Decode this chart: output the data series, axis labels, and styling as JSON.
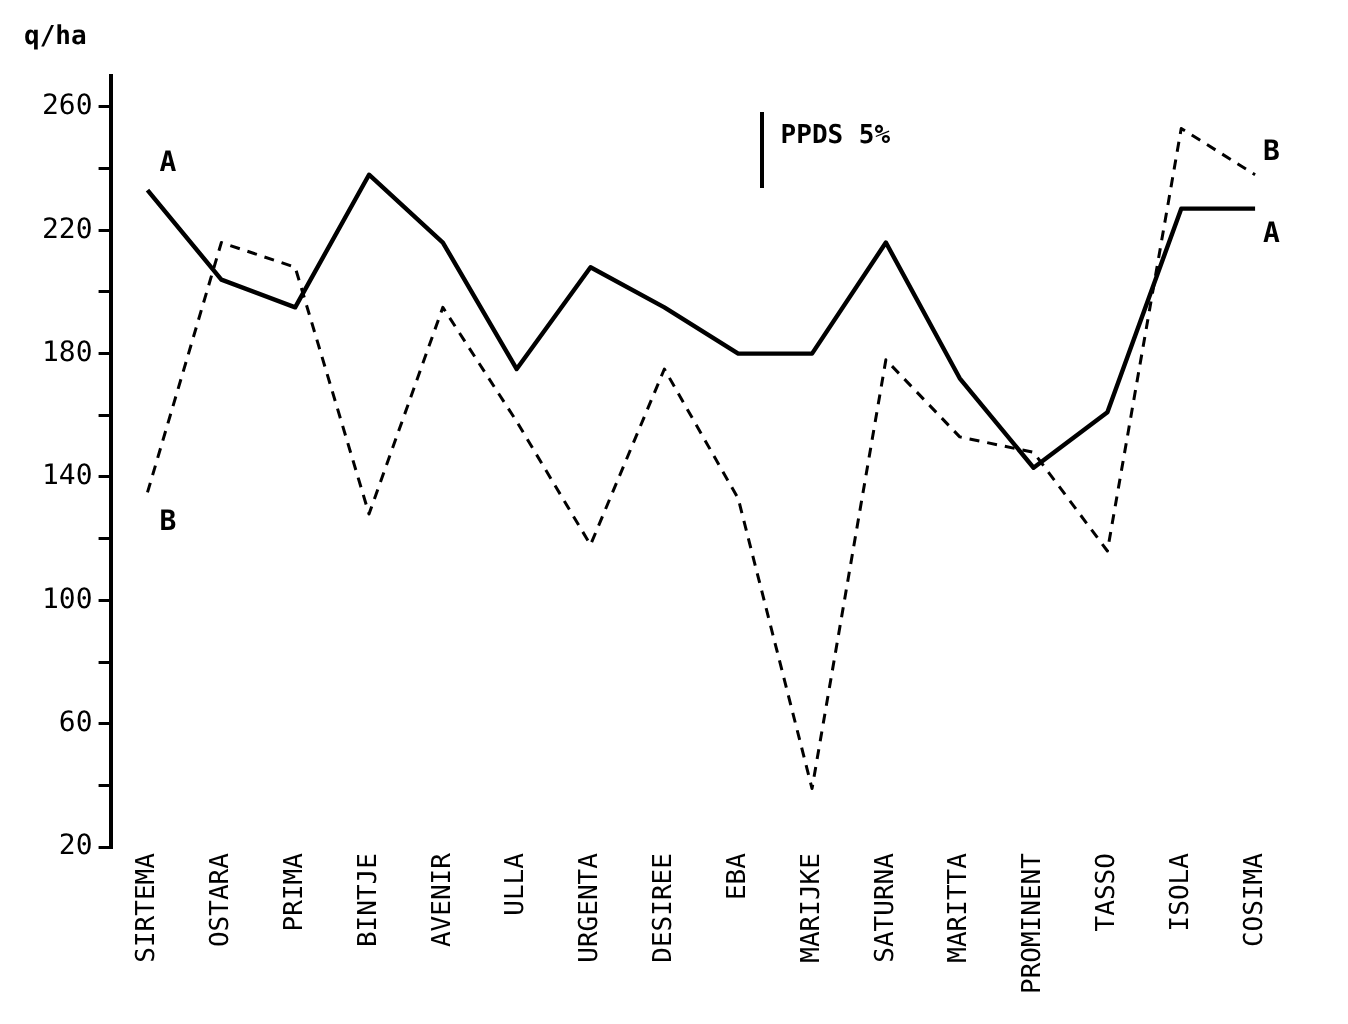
{
  "chart_data": {
    "type": "line",
    "ylabel": "q/ha",
    "categories": [
      "SIRTEMA",
      "OSTARA",
      "PRIMA",
      "BINTJE",
      "AVENIR",
      "ULLA",
      "URGENTA",
      "DESIREE",
      "EBA",
      "MARIJKE",
      "SATURNA",
      "MARITTA",
      "PROMINENT",
      "TASSO",
      "ISOLA",
      "COSIMA"
    ],
    "series": [
      {
        "name": "A",
        "color": "#000000",
        "line_style": "solid",
        "values": [
          233,
          204,
          195,
          238,
          216,
          175,
          208,
          195,
          180,
          180,
          216,
          172,
          143,
          161,
          227,
          227
        ]
      },
      {
        "name": "B",
        "color": "#000000",
        "line_style": "dashed",
        "values": [
          135,
          216,
          208,
          128,
          195,
          158,
          118,
          175,
          133,
          39,
          178,
          153,
          148,
          116,
          253,
          238
        ]
      }
    ],
    "ylim": [
      20,
      270
    ],
    "yticks": [
      20,
      {
        "value": 40,
        "label": null
      },
      60,
      {
        "value": 80,
        "label": null
      },
      100,
      {
        "value": 120,
        "label": null
      },
      140,
      {
        "value": 160,
        "label": null
      },
      180,
      {
        "value": 200,
        "label": null
      },
      220,
      {
        "value": 240,
        "label": null
      },
      260
    ],
    "annotations": [
      "PPDS 5%"
    ],
    "marker": "none",
    "grid": false,
    "legend": false
  }
}
